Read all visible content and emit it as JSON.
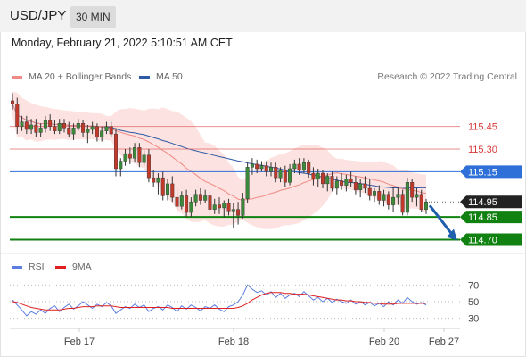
{
  "header": {
    "symbol": "USD/JPY",
    "timeframe": "30 MIN"
  },
  "datetime": "Monday, February 21, 2022 5:10:51 AM CET",
  "legend": {
    "ma20_label": "MA 20 + Bollinger Bands",
    "ma20_color": "#f08a85",
    "ma50_label": "MA 50",
    "ma50_color": "#2f5aa5",
    "copyright": "Research © 2022 Trading Central"
  },
  "rsi_legend": {
    "rsi_label": "RSI",
    "rsi_color": "#5b7ee0",
    "ma9_label": "9MA",
    "ma9_color": "#e02020"
  },
  "chart_data": [
    {
      "type": "candlestick",
      "title": "USD/JPY",
      "x_ticks": [
        "Feb 17",
        "Feb 18",
        "Feb 20",
        "Feb 27"
      ],
      "price_range": [
        114.62,
        115.72
      ],
      "current_price": 114.95,
      "levels": [
        {
          "value": 115.45,
          "label": "115.45",
          "kind": "resistance",
          "color": "#e06060"
        },
        {
          "value": 115.3,
          "label": "115.30",
          "kind": "resistance",
          "color": "#e06060"
        },
        {
          "value": 115.15,
          "label": "115.15",
          "kind": "pivot",
          "color": "#2f6fd8"
        },
        {
          "value": 114.85,
          "label": "114.85",
          "kind": "support",
          "color": "#118211"
        },
        {
          "value": 114.7,
          "label": "114.70",
          "kind": "support",
          "color": "#118211"
        }
      ],
      "current_label": "114.95",
      "forecast": {
        "from": 114.95,
        "to": 114.7,
        "direction": "down"
      },
      "series": [
        {
          "name": "MA 20 + Bollinger Bands",
          "color": "#f08a85"
        },
        {
          "name": "MA 50",
          "color": "#2f5aa5"
        }
      ],
      "ohlc": [
        [
          115.62,
          115.67,
          115.56,
          115.6
        ],
        [
          115.6,
          115.64,
          115.4,
          115.45
        ],
        [
          115.45,
          115.52,
          115.42,
          115.48
        ],
        [
          115.48,
          115.52,
          115.4,
          115.43
        ],
        [
          115.43,
          115.5,
          115.4,
          115.46
        ],
        [
          115.46,
          115.5,
          115.38,
          115.41
        ],
        [
          115.41,
          115.47,
          115.38,
          115.44
        ],
        [
          115.44,
          115.52,
          115.41,
          115.49
        ],
        [
          115.49,
          115.53,
          115.42,
          115.45
        ],
        [
          115.45,
          115.49,
          115.4,
          115.42
        ],
        [
          115.42,
          115.5,
          115.4,
          115.47
        ],
        [
          115.47,
          115.5,
          115.41,
          115.44
        ],
        [
          115.44,
          115.48,
          115.38,
          115.4
        ],
        [
          115.4,
          115.47,
          115.36,
          115.44
        ],
        [
          115.44,
          115.5,
          115.42,
          115.47
        ],
        [
          115.47,
          115.49,
          115.38,
          115.41
        ],
        [
          115.41,
          115.46,
          115.34,
          115.43
        ],
        [
          115.43,
          115.48,
          115.4,
          115.45
        ],
        [
          115.45,
          115.47,
          115.35,
          115.38
        ],
        [
          115.38,
          115.45,
          115.35,
          115.42
        ],
        [
          115.42,
          115.48,
          115.4,
          115.45
        ],
        [
          115.45,
          115.48,
          115.38,
          115.4
        ],
        [
          115.4,
          115.44,
          115.12,
          115.17
        ],
        [
          115.17,
          115.24,
          115.12,
          115.22
        ],
        [
          115.22,
          115.3,
          115.19,
          115.27
        ],
        [
          115.27,
          115.31,
          115.2,
          115.24
        ],
        [
          115.24,
          115.34,
          115.21,
          115.31
        ],
        [
          115.31,
          115.34,
          115.18,
          115.21
        ],
        [
          115.21,
          115.29,
          115.19,
          115.26
        ],
        [
          115.26,
          115.3,
          115.08,
          115.11
        ],
        [
          115.11,
          115.16,
          115.05,
          115.08
        ],
        [
          115.08,
          115.14,
          115.0,
          115.11
        ],
        [
          115.11,
          115.15,
          114.96,
          114.99
        ],
        [
          115.0,
          115.1,
          114.96,
          115.07
        ],
        [
          115.07,
          115.12,
          114.95,
          114.98
        ],
        [
          114.98,
          115.04,
          114.88,
          114.92
        ],
        [
          114.92,
          115.02,
          114.9,
          114.99
        ],
        [
          114.99,
          115.03,
          114.85,
          114.88
        ],
        [
          114.88,
          114.98,
          114.85,
          114.95
        ],
        [
          114.95,
          115.03,
          114.92,
          115.0
        ],
        [
          115.0,
          115.04,
          114.93,
          114.96
        ],
        [
          114.96,
          115.03,
          114.94,
          114.99
        ],
        [
          114.99,
          115.02,
          114.86,
          114.9
        ],
        [
          114.9,
          114.97,
          114.87,
          114.93
        ],
        [
          114.93,
          114.98,
          114.87,
          114.91
        ],
        [
          114.91,
          114.96,
          114.85,
          114.94
        ],
        [
          114.94,
          114.97,
          114.86,
          114.89
        ],
        [
          114.89,
          114.94,
          114.78,
          114.9
        ],
        [
          114.9,
          114.95,
          114.8,
          114.86
        ],
        [
          114.86,
          115.01,
          114.84,
          114.97
        ],
        [
          114.97,
          115.21,
          114.94,
          115.18
        ],
        [
          115.18,
          115.24,
          115.13,
          115.2
        ],
        [
          115.2,
          115.23,
          115.14,
          115.17
        ],
        [
          115.17,
          115.22,
          115.15,
          115.19
        ],
        [
          115.19,
          115.22,
          115.12,
          115.15
        ],
        [
          115.15,
          115.21,
          115.12,
          115.18
        ],
        [
          115.18,
          115.21,
          115.08,
          115.11
        ],
        [
          115.11,
          115.18,
          115.08,
          115.16
        ],
        [
          115.16,
          115.19,
          115.05,
          115.08
        ],
        [
          115.08,
          115.2,
          115.06,
          115.17
        ],
        [
          115.17,
          115.23,
          115.14,
          115.2
        ],
        [
          115.2,
          115.24,
          115.13,
          115.16
        ],
        [
          115.16,
          115.24,
          115.14,
          115.21
        ],
        [
          115.21,
          115.23,
          115.11,
          115.14
        ],
        [
          115.14,
          115.18,
          115.06,
          115.1
        ],
        [
          115.1,
          115.17,
          115.05,
          115.14
        ],
        [
          115.14,
          115.16,
          115.04,
          115.07
        ],
        [
          115.07,
          115.14,
          115.02,
          115.12
        ],
        [
          115.12,
          115.15,
          115.02,
          115.04
        ],
        [
          115.04,
          115.12,
          115.0,
          115.09
        ],
        [
          115.09,
          115.14,
          115.03,
          115.06
        ],
        [
          115.06,
          115.13,
          115.02,
          115.1
        ],
        [
          115.1,
          115.15,
          115.05,
          115.08
        ],
        [
          115.08,
          115.12,
          115.0,
          115.03
        ],
        [
          115.03,
          115.1,
          114.98,
          115.07
        ],
        [
          115.07,
          115.12,
          115.01,
          115.04
        ],
        [
          115.04,
          115.1,
          114.96,
          114.99
        ],
        [
          114.99,
          115.04,
          114.95,
          115.02
        ],
        [
          115.02,
          115.06,
          114.93,
          114.96
        ],
        [
          114.96,
          115.03,
          114.92,
          115.0
        ],
        [
          115.0,
          115.02,
          114.9,
          114.93
        ],
        [
          114.93,
          115.05,
          114.88,
          114.98
        ],
        [
          114.98,
          115.05,
          114.93,
          115.0
        ],
        [
          115.0,
          115.03,
          114.86,
          114.88
        ],
        [
          114.88,
          115.11,
          114.86,
          115.08
        ],
        [
          115.08,
          115.1,
          114.95,
          114.98
        ],
        [
          114.98,
          115.04,
          114.92,
          115.0
        ],
        [
          115.0,
          115.03,
          114.88,
          114.9
        ],
        [
          114.9,
          114.97,
          114.87,
          114.95
        ]
      ]
    },
    {
      "type": "line",
      "title": "RSI",
      "y_ticks": [
        70,
        50,
        30
      ],
      "ylim": [
        20,
        80
      ],
      "series": [
        {
          "name": "RSI",
          "color": "#5b7ee0",
          "values": [
            52,
            46,
            40,
            33,
            38,
            35,
            40,
            36,
            42,
            45,
            38,
            43,
            47,
            41,
            45,
            50,
            46,
            42,
            47,
            44,
            49,
            45,
            36,
            40,
            44,
            42,
            47,
            43,
            46,
            38,
            42,
            44,
            40,
            46,
            43,
            38,
            45,
            41,
            46,
            43,
            39,
            44,
            42,
            46,
            41,
            38,
            44,
            46,
            50,
            58,
            70,
            65,
            61,
            63,
            58,
            62,
            55,
            60,
            54,
            58,
            60,
            56,
            62,
            57,
            52,
            55,
            50,
            54,
            49,
            53,
            50,
            48,
            52,
            47,
            50,
            46,
            49,
            45,
            48,
            44,
            50,
            46,
            52,
            48,
            55,
            50,
            47,
            49,
            46
          ]
        },
        {
          "name": "9MA",
          "color": "#e02020",
          "values": [
            50,
            49,
            47,
            45,
            43,
            42,
            41,
            40,
            40,
            40,
            40,
            41,
            42,
            42,
            43,
            44,
            44,
            44,
            45,
            45,
            45,
            45,
            44,
            43,
            43,
            43,
            43,
            43,
            43,
            43,
            43,
            43,
            43,
            43,
            42,
            42,
            42,
            42,
            42,
            42,
            42,
            42,
            42,
            42,
            42,
            42,
            42,
            42,
            43,
            45,
            48,
            52,
            55,
            58,
            60,
            61,
            61,
            61,
            60,
            60,
            59,
            59,
            59,
            58,
            57,
            56,
            55,
            54,
            53,
            52,
            52,
            51,
            51,
            50,
            50,
            49,
            49,
            48,
            48,
            47,
            47,
            47,
            48,
            48,
            48,
            48,
            48,
            48,
            48
          ]
        }
      ]
    }
  ]
}
